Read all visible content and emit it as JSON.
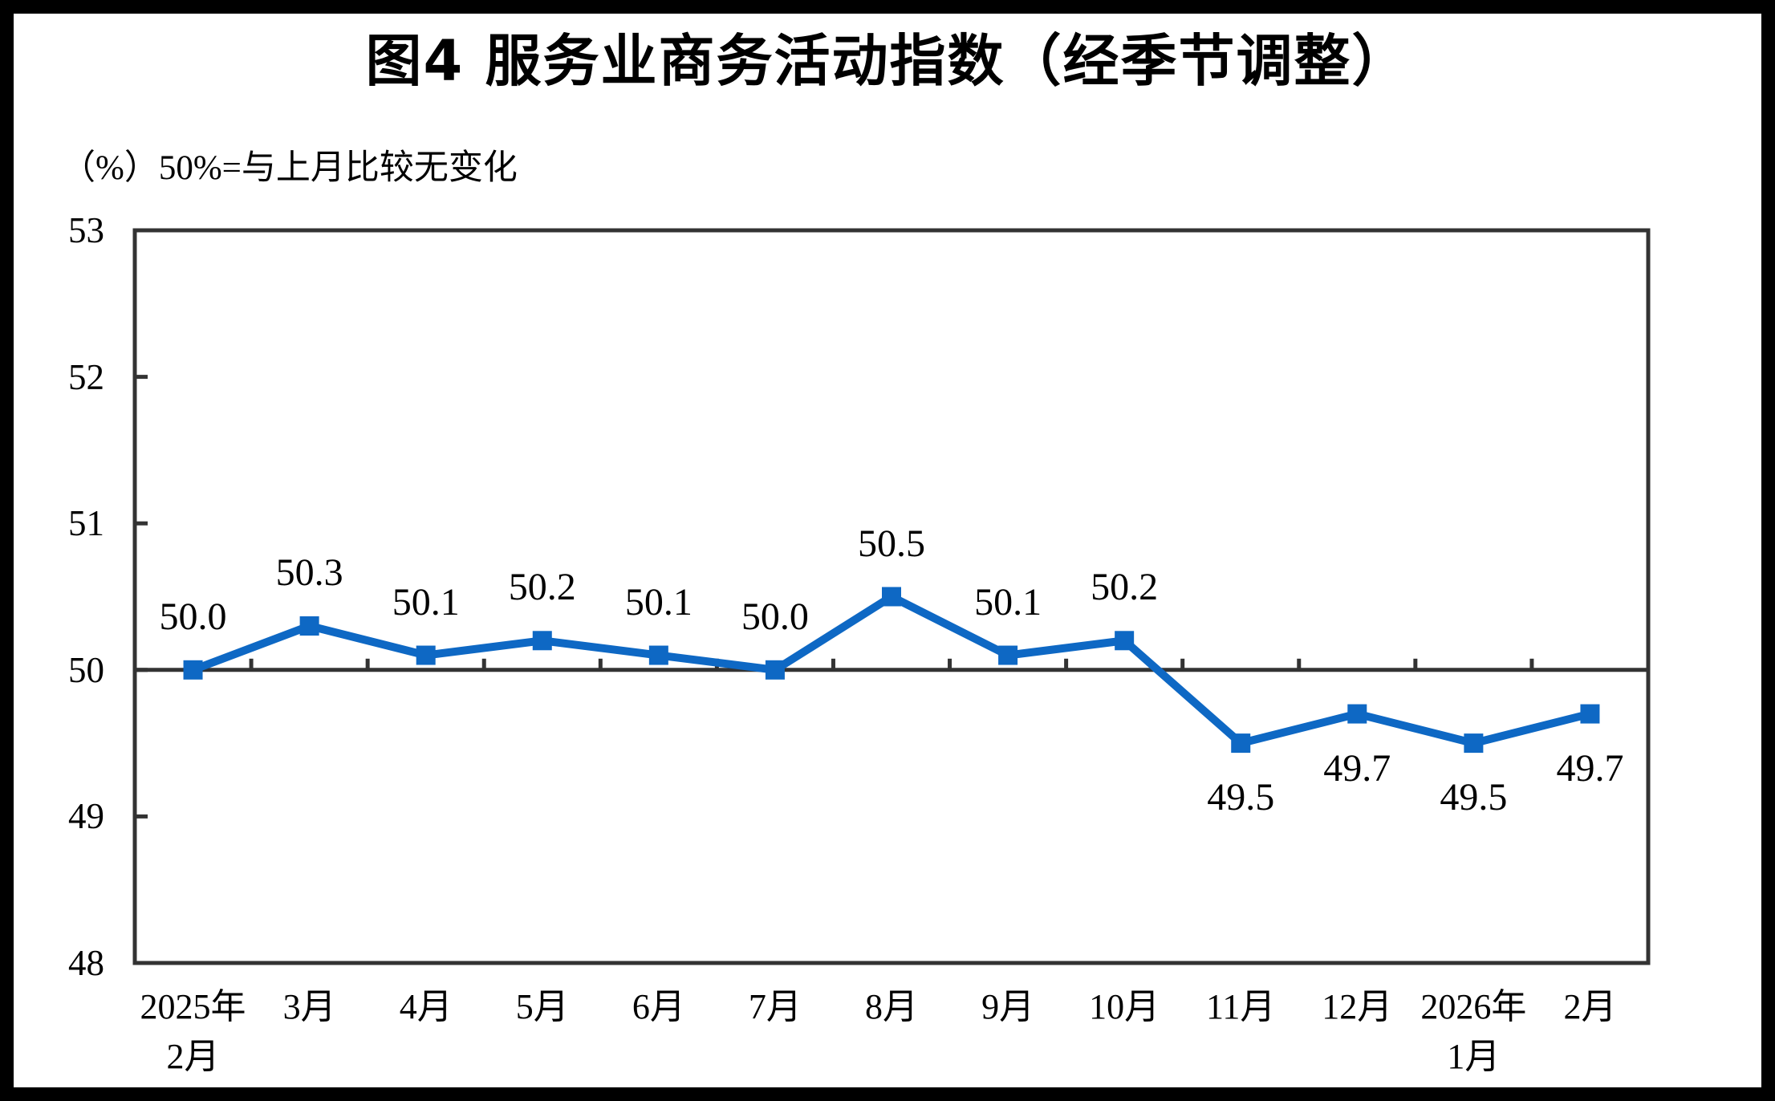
{
  "title": "图4 服务业商务活动指数（经季节调整）",
  "subtitle": "（%）50%=与上月比较无变化",
  "chart_data": {
    "type": "line",
    "title": "图4 服务业商务活动指数（经季节调整）",
    "subtitle": "（%）50%=与上月比较无变化",
    "categories": [
      "2025年\n2月",
      "3月",
      "4月",
      "5月",
      "6月",
      "7月",
      "8月",
      "9月",
      "10月",
      "11月",
      "12月",
      "2026年\n1月",
      "2月"
    ],
    "series": [
      {
        "name": "服务业商务活动指数",
        "values": [
          50.0,
          50.3,
          50.1,
          50.2,
          50.1,
          50.0,
          50.5,
          50.1,
          50.2,
          49.5,
          49.7,
          49.5,
          49.7
        ]
      }
    ],
    "data_labels": [
      "50.0",
      "50.3",
      "50.1",
      "50.2",
      "50.1",
      "50.0",
      "50.5",
      "50.1",
      "50.2",
      "49.5",
      "49.7",
      "49.5",
      "49.7"
    ],
    "ylim": [
      48,
      53
    ],
    "yticks": [
      53,
      52,
      51,
      50,
      49,
      48
    ],
    "reference_line": 50,
    "grid": false,
    "legend": false,
    "marker": "square",
    "colors": {
      "line": "#0E68C4",
      "axis": "#333333",
      "text": "#000000",
      "background": "#FFFFFF",
      "frame": "#000000"
    }
  }
}
